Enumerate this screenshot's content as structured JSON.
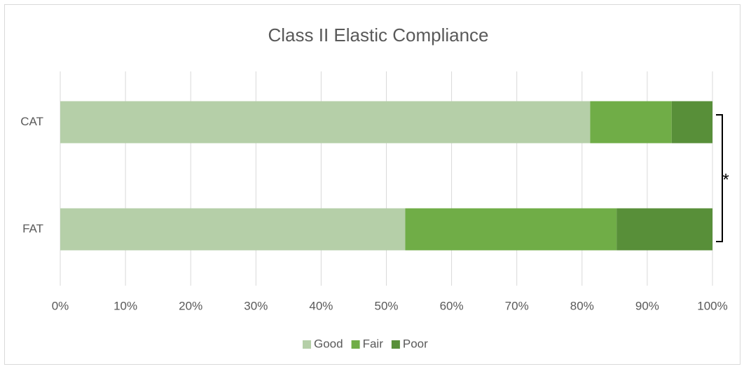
{
  "chart_data": {
    "type": "stacked_bar_horizontal",
    "title": "Class II Elastic Compliance",
    "categories": [
      "CAT",
      "FAT"
    ],
    "series": [
      {
        "name": "Good",
        "color": "#b5cfa8",
        "values": [
          81.25,
          52.9
        ]
      },
      {
        "name": "Fair",
        "color": "#70ad47",
        "values": [
          12.5,
          32.4
        ]
      },
      {
        "name": "Poor",
        "color": "#588f39",
        "values": [
          6.25,
          14.7
        ]
      }
    ],
    "xlim": [
      0,
      100
    ],
    "xticks": [
      {
        "value": 0,
        "label": "0%"
      },
      {
        "value": 10,
        "label": "10%"
      },
      {
        "value": 20,
        "label": "20%"
      },
      {
        "value": 30,
        "label": "30%"
      },
      {
        "value": 40,
        "label": "40%"
      },
      {
        "value": 50,
        "label": "50%"
      },
      {
        "value": 60,
        "label": "60%"
      },
      {
        "value": 70,
        "label": "70%"
      },
      {
        "value": 80,
        "label": "80%"
      },
      {
        "value": 90,
        "label": "90%"
      },
      {
        "value": 100,
        "label": "100%"
      }
    ],
    "grid": true,
    "legend": "bottom",
    "annotation": "*"
  }
}
